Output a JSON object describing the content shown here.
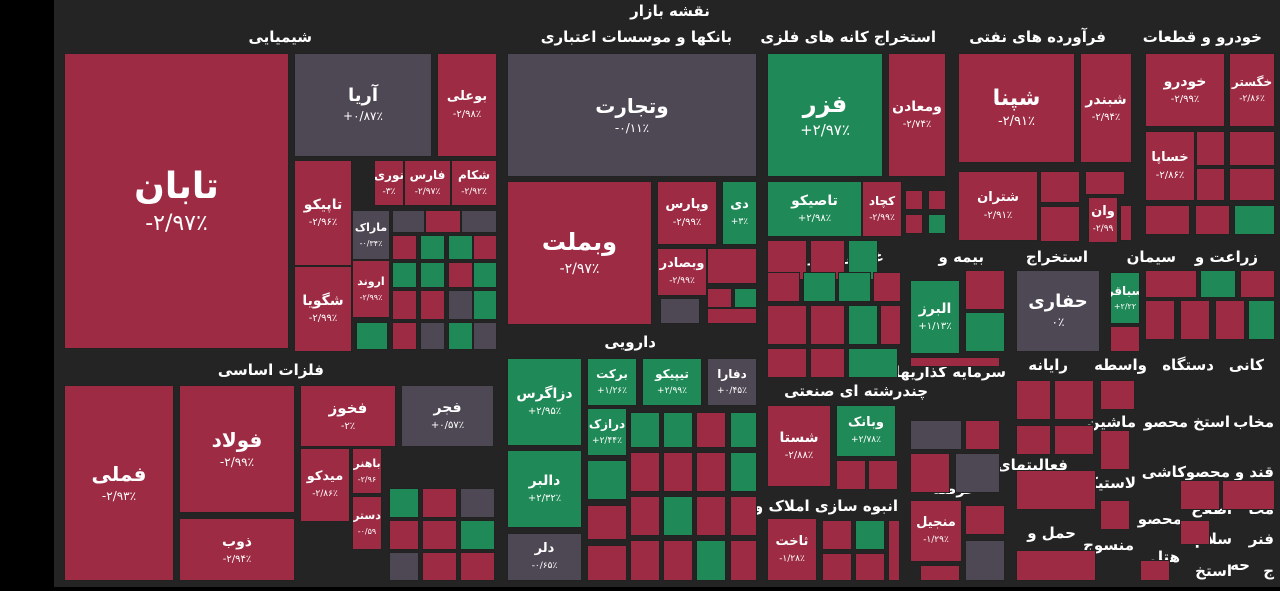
{
  "colors": {
    "negative": "#9e2b44",
    "positive": "#1f8a57",
    "neutral": "#4e4854",
    "background": "#242424"
  },
  "chart_data": {
    "type": "treemap",
    "title": "نقشه بازار",
    "sectors": [
      {
        "name": "شیمیایی"
      },
      {
        "name": "بانکها و موسسات اعتباری"
      },
      {
        "name": "استخراج کانه های فلزی"
      },
      {
        "name": "فرآورده های نفتی"
      },
      {
        "name": "خودرو و قطعات"
      },
      {
        "name": "فلزات اساسی"
      },
      {
        "name": "دارویی"
      },
      {
        "name": "غذایی بجز قند"
      },
      {
        "name": "بیمه و"
      },
      {
        "name": "استخراج"
      },
      {
        "name": "سیمان"
      },
      {
        "name": "زراعت و"
      },
      {
        "name": "چندرشته ای صنعتی"
      },
      {
        "name": "سرمایه گذاریها"
      },
      {
        "name": "رایانه"
      },
      {
        "name": "واسطه"
      },
      {
        "name": "دستگاه"
      },
      {
        "name": "کانی"
      },
      {
        "name": "انبوه سازی املاک و"
      },
      {
        "name": "عرضه"
      },
      {
        "name": "فعالیتهای"
      },
      {
        "name": "حمل و"
      },
      {
        "name": "ماشین"
      },
      {
        "name": "محصو"
      },
      {
        "name": "استخ"
      },
      {
        "name": "مخاب"
      },
      {
        "name": "کاشی"
      },
      {
        "name": "محصو"
      },
      {
        "name": "قند و"
      },
      {
        "name": "لاستیک"
      },
      {
        "name": "اطلاع"
      },
      {
        "name": "محا"
      },
      {
        "name": "محصو"
      },
      {
        "name": "منسوج"
      },
      {
        "name": "هتل"
      },
      {
        "name": "سلام"
      },
      {
        "name": "فنر"
      },
      {
        "name": "حه"
      },
      {
        "name": "استخ"
      },
      {
        "name": "ج"
      }
    ],
    "stocks": [
      {
        "symbol": "تابان",
        "change": "-۲/۹۷٪",
        "state": "negative"
      },
      {
        "symbol": "آریا",
        "change": "+۰/۸۷٪",
        "state": "neutral"
      },
      {
        "symbol": "بوعلی",
        "change": "-۲/۹۸٪",
        "state": "negative"
      },
      {
        "symbol": "نوری",
        "change": "-۳٪",
        "state": "negative"
      },
      {
        "symbol": "فارس",
        "change": "-۲/۹۷٪",
        "state": "negative"
      },
      {
        "symbol": "شکام",
        "change": "-۲/۹۲٪",
        "state": "negative"
      },
      {
        "symbol": "تاپیکو",
        "change": "-۲/۹۶٪",
        "state": "negative"
      },
      {
        "symbol": "ماراک",
        "change": "-۰/۳۴٪",
        "state": "neutral"
      },
      {
        "symbol": "شگویا",
        "change": "-۲/۹۹٪",
        "state": "negative"
      },
      {
        "symbol": "اروند",
        "change": "-۲/۹۹٪",
        "state": "negative"
      },
      {
        "symbol": "وتجارت",
        "change": "-۰/۱۱٪",
        "state": "neutral"
      },
      {
        "symbol": "وبملت",
        "change": "-۲/۹۷٪",
        "state": "negative"
      },
      {
        "symbol": "وپارس",
        "change": "-۲/۹۹٪",
        "state": "negative"
      },
      {
        "symbol": "دی",
        "change": "+۳٪",
        "state": "positive"
      },
      {
        "symbol": "وبصادر",
        "change": "-۲/۹۹٪",
        "state": "negative"
      },
      {
        "symbol": "فزر",
        "change": "+۲/۹۷٪",
        "state": "positive"
      },
      {
        "symbol": "ومعادن",
        "change": "-۲/۷۴٪",
        "state": "negative"
      },
      {
        "symbol": "تاصیکو",
        "change": "+۲/۹۸٪",
        "state": "positive"
      },
      {
        "symbol": "کچاد",
        "change": "-۲/۹۹٪",
        "state": "negative"
      },
      {
        "symbol": "شپنا",
        "change": "-۲/۹۱٪",
        "state": "negative"
      },
      {
        "symbol": "شبندر",
        "change": "-۲/۹۴٪",
        "state": "negative"
      },
      {
        "symbol": "شتران",
        "change": "-۲/۹۱٪",
        "state": "negative"
      },
      {
        "symbol": "وان",
        "change": "-۲/۹۹",
        "state": "negative"
      },
      {
        "symbol": "خودرو",
        "change": "-۲/۹۹٪",
        "state": "negative"
      },
      {
        "symbol": "خگستر",
        "change": "-۲/۸۶٪",
        "state": "negative"
      },
      {
        "symbol": "خساپا",
        "change": "-۲/۸۶٪",
        "state": "negative"
      },
      {
        "symbol": "فملی",
        "change": "-۲/۹۳٪",
        "state": "negative"
      },
      {
        "symbol": "فولاد",
        "change": "-۲/۹۹٪",
        "state": "negative"
      },
      {
        "symbol": "فخوز",
        "change": "-۲٪",
        "state": "negative"
      },
      {
        "symbol": "فجر",
        "change": "+۰/۵۷٪",
        "state": "neutral"
      },
      {
        "symbol": "میدکو",
        "change": "-۲/۸۶٪",
        "state": "negative"
      },
      {
        "symbol": "باهنر",
        "change": "-۲/۹۶",
        "state": "negative"
      },
      {
        "symbol": "ذوب",
        "change": "-۲/۹۴٪",
        "state": "negative"
      },
      {
        "symbol": "دستر",
        "change": "-۰/۵۹",
        "state": "negative"
      },
      {
        "symbol": "دزاگرس",
        "change": "+۲/۹۵٪",
        "state": "positive"
      },
      {
        "symbol": "برکت",
        "change": "+۱/۲۶٪",
        "state": "positive"
      },
      {
        "symbol": "تیپیکو",
        "change": "+۲/۹۹٪",
        "state": "positive"
      },
      {
        "symbol": "دفارا",
        "change": "+۰/۴۵٪",
        "state": "neutral"
      },
      {
        "symbol": "درازک",
        "change": "+۲/۴۴٪",
        "state": "positive"
      },
      {
        "symbol": "دالبر",
        "change": "+۲/۳۲٪",
        "state": "positive"
      },
      {
        "symbol": "دلر",
        "change": "-۰/۶۵٪",
        "state": "neutral"
      },
      {
        "symbol": "البرز",
        "change": "+۱/۱۳٪",
        "state": "positive"
      },
      {
        "symbol": "حفاری",
        "change": "۰٪",
        "state": "neutral"
      },
      {
        "symbol": "سباقر",
        "change": "+۲/۲۲",
        "state": "positive"
      },
      {
        "symbol": "شستا",
        "change": "-۲/۸۸٪",
        "state": "negative"
      },
      {
        "symbol": "وبانک",
        "change": "+۲/۷۸٪",
        "state": "positive"
      },
      {
        "symbol": "ثاخت",
        "change": "-۱/۲۸٪",
        "state": "negative"
      },
      {
        "symbol": "منجیل",
        "change": "-۱/۲۹٪",
        "state": "negative"
      }
    ]
  }
}
